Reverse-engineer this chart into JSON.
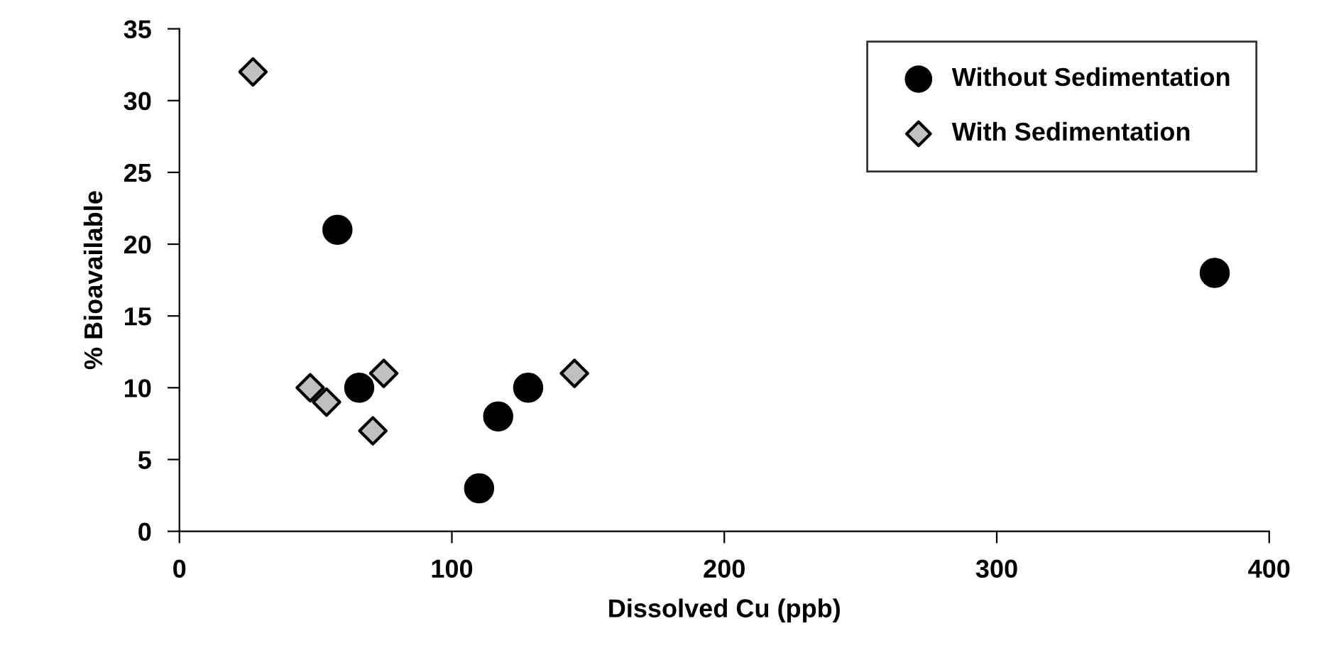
{
  "chart_data": {
    "type": "scatter",
    "xlabel": "Dissolved Cu (ppb)",
    "ylabel": "% Bioavailable",
    "xlim": [
      0,
      400
    ],
    "xticks": [
      0,
      100,
      200,
      300,
      400
    ],
    "ylim": [
      0,
      35
    ],
    "yticks": [
      0,
      5,
      10,
      15,
      20,
      25,
      30,
      35
    ],
    "grid": false,
    "legend": "top right",
    "series": [
      {
        "name": "Without Sedimentation",
        "color": "#000000",
        "marker": "circle",
        "x": [
          58,
          66,
          110,
          117,
          128,
          380
        ],
        "values": [
          21,
          10,
          3,
          8,
          10,
          18
        ]
      },
      {
        "name": "With Sedimentation",
        "color": "#c0c0c0",
        "marker": "diamond",
        "x": [
          27,
          48,
          54,
          71,
          75,
          145
        ],
        "values": [
          32,
          10,
          9,
          7,
          11,
          11
        ]
      }
    ]
  }
}
